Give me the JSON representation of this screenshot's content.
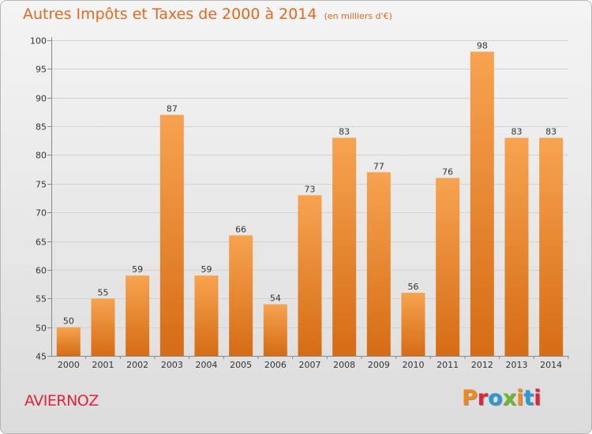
{
  "header": {
    "title": "Autres Impôts et Taxes de 2000 à 2014",
    "unit": "(en milliers d'€)"
  },
  "footer": {
    "city": "AVIERNOZ",
    "logo_text": "Proxiti",
    "logo_colors": [
      "#f08a1c",
      "#e0233a",
      "#2a9ad6",
      "#6bb82a",
      "#f08a1c",
      "#2a9ad6",
      "#e0233a"
    ]
  },
  "chart_data": {
    "type": "bar",
    "categories": [
      "2000",
      "2001",
      "2002",
      "2003",
      "2004",
      "2005",
      "2006",
      "2007",
      "2008",
      "2009",
      "2010",
      "2011",
      "2012",
      "2013",
      "2014"
    ],
    "values": [
      50,
      55,
      59,
      87,
      59,
      66,
      54,
      73,
      83,
      77,
      56,
      76,
      98,
      83,
      83
    ],
    "ylim": [
      45,
      100
    ],
    "yticks": [
      45,
      50,
      55,
      60,
      65,
      70,
      75,
      80,
      85,
      90,
      95,
      100
    ],
    "grid": true,
    "bar_color_light": "#f7a350",
    "bar_color_dark": "#d66c15",
    "title_color": "#e06a1f",
    "city_color": "#e0233a"
  }
}
